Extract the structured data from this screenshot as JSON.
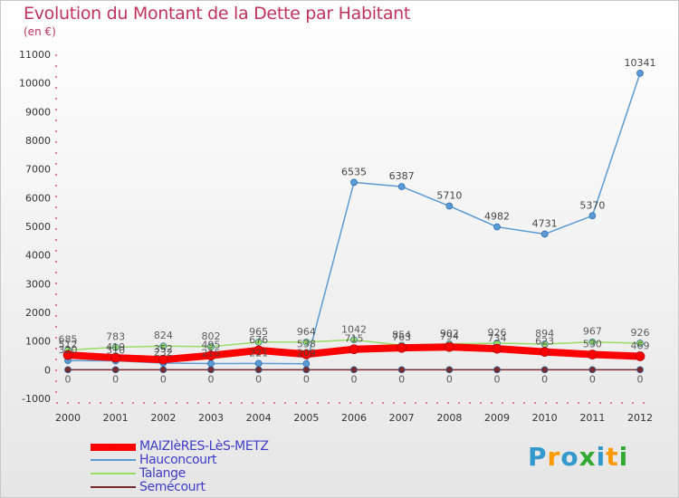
{
  "header": {
    "title": "Evolution du Montant de la Dette par Habitant",
    "subtitle": "(en €)"
  },
  "logo": {
    "text": "Proxiti",
    "colors": [
      "#3399cc",
      "#ff9900",
      "#3399cc",
      "#33aa33",
      "#3399cc",
      "#ff9900",
      "#33aa33"
    ]
  },
  "chart_data": {
    "type": "line",
    "x": [
      "2000",
      "2001",
      "2002",
      "2003",
      "2004",
      "2005",
      "2006",
      "2007",
      "2008",
      "2009",
      "2010",
      "2011",
      "2012"
    ],
    "ylim": [
      -1000,
      11000
    ],
    "yticks": [
      "-1000",
      "0",
      "1000",
      "2000",
      "3000",
      "4000",
      "5000",
      "6000",
      "7000",
      "8000",
      "9000",
      "10000",
      "11000"
    ],
    "grid": false,
    "legend_position": "bottom-left",
    "series": [
      {
        "name": "MAIZIèRES-LèS-METZ",
        "color": "#ff0000",
        "values": [
          512,
          419,
          352,
          495,
          676,
          538,
          715,
          763,
          794,
          734,
          623,
          530,
          469
        ],
        "labels": [
          "512",
          "419",
          "352",
          "495",
          "676",
          "538",
          "715",
          "763",
          "794",
          "734",
          "623",
          "530",
          "469"
        ]
      },
      {
        "name": "Hauconcourt",
        "color": "#5b9bd5",
        "values": [
          320,
          310,
          232,
          215,
          221,
          209,
          6535,
          6387,
          5710,
          4982,
          4731,
          5370,
          10341
        ],
        "labels": [
          "320",
          "310",
          "232",
          "215",
          "221",
          "209",
          "6535",
          "6387",
          "5710",
          "4982",
          "4731",
          "5370",
          "10341"
        ]
      },
      {
        "name": "Talange",
        "color": "#99dd66",
        "values": [
          685,
          783,
          824,
          802,
          965,
          964,
          1042,
          854,
          902,
          926,
          894,
          967,
          926
        ],
        "labels": [
          "685",
          "783",
          "824",
          "802",
          "965",
          "964",
          "1042",
          "854",
          "902",
          "926",
          "894",
          "967",
          "926"
        ]
      },
      {
        "name": "Semécourt",
        "color": "#7a2a2a",
        "values": [
          0,
          0,
          0,
          0,
          0,
          0,
          0,
          0,
          0,
          0,
          0,
          0,
          0
        ],
        "labels": [
          "0",
          "0",
          "0",
          "0",
          "0",
          "0",
          "0",
          "0",
          "0",
          "0",
          "0",
          "0",
          "0"
        ]
      }
    ]
  }
}
